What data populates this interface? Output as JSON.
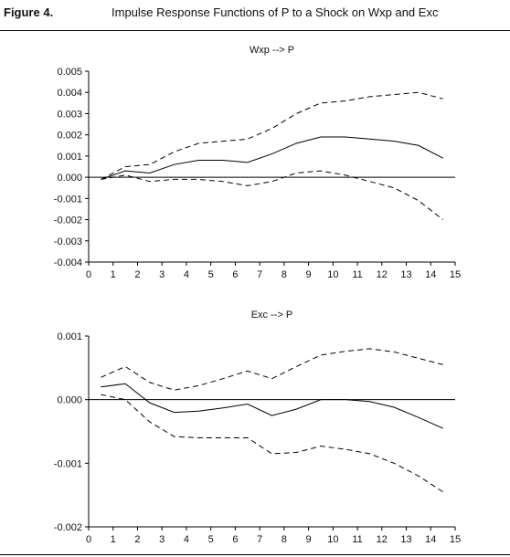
{
  "figure": {
    "label": "Figure 4.",
    "title": "Impulse Response Functions of P to a Shock on Wxp and Exc"
  },
  "chart_data": [
    {
      "type": "line",
      "title": "Wxp --> P",
      "xlabel": "",
      "ylabel": "",
      "xlim": [
        0,
        15
      ],
      "ylim": [
        -0.004,
        0.005
      ],
      "x_ticks": [
        0,
        1,
        2,
        3,
        4,
        5,
        6,
        7,
        8,
        9,
        10,
        11,
        12,
        13,
        14,
        15
      ],
      "y_ticks": [
        -0.004,
        -0.003,
        -0.002,
        -0.001,
        0.0,
        0.001,
        0.002,
        0.003,
        0.004,
        0.005
      ],
      "y_tick_labels": [
        "-0.004",
        "-0.003",
        "-0.002",
        "-0.001",
        "0.000",
        "0.001",
        "0.002",
        "0.003",
        "0.004",
        "0.005"
      ],
      "grid": false,
      "zero_line": true,
      "x": [
        0.5,
        1.5,
        2.5,
        3.5,
        4.5,
        5.5,
        6.5,
        7.5,
        8.5,
        9.5,
        10.5,
        11.5,
        12.5,
        13.5,
        14.5
      ],
      "series": [
        {
          "style": "solid",
          "values": [
            -0.0001,
            0.0003,
            0.0002,
            0.0006,
            0.0008,
            0.0008,
            0.0007,
            0.0011,
            0.0016,
            0.0019,
            0.0019,
            0.0018,
            0.0017,
            0.0015,
            0.0009
          ]
        },
        {
          "style": "dashed",
          "values": [
            -0.0001,
            0.0005,
            0.0006,
            0.0012,
            0.0016,
            0.0017,
            0.0018,
            0.0023,
            0.003,
            0.0035,
            0.0036,
            0.0038,
            0.0039,
            0.004,
            0.0037
          ]
        },
        {
          "style": "dashed",
          "values": [
            -0.0001,
            0.0001,
            -0.0002,
            -0.0001,
            -0.0001,
            -0.0002,
            -0.0004,
            -0.0002,
            0.0002,
            0.0003,
            0.0001,
            -0.0002,
            -0.0005,
            -0.0011,
            -0.002
          ]
        }
      ]
    },
    {
      "type": "line",
      "title": "Exc --> P",
      "xlabel": "",
      "ylabel": "",
      "xlim": [
        0,
        15
      ],
      "ylim": [
        -0.002,
        0.001
      ],
      "x_ticks": [
        0,
        1,
        2,
        3,
        4,
        5,
        6,
        7,
        8,
        9,
        10,
        11,
        12,
        13,
        14,
        15
      ],
      "y_ticks": [
        -0.002,
        -0.001,
        0.0,
        0.001
      ],
      "y_tick_labels": [
        "-0.002",
        "-0.001",
        "0.000",
        "0.001"
      ],
      "grid": false,
      "zero_line": true,
      "x": [
        0.5,
        1.5,
        2.5,
        3.5,
        4.5,
        5.5,
        6.5,
        7.5,
        8.5,
        9.5,
        10.5,
        11.5,
        12.5,
        13.5,
        14.5
      ],
      "series": [
        {
          "style": "solid",
          "values": [
            0.0002,
            0.00025,
            -5e-05,
            -0.0002,
            -0.00018,
            -0.00013,
            -7e-05,
            -0.00025,
            -0.00015,
            0.0,
            0.0,
            -3e-05,
            -0.00012,
            -0.00028,
            -0.00045
          ]
        },
        {
          "style": "dashed",
          "values": [
            0.00035,
            0.00052,
            0.00027,
            0.00015,
            0.00022,
            0.00033,
            0.00045,
            0.00033,
            0.00052,
            0.0007,
            0.00076,
            0.0008,
            0.00075,
            0.00065,
            0.00055
          ]
        },
        {
          "style": "dashed",
          "values": [
            8e-05,
            0.0,
            -0.00035,
            -0.00058,
            -0.0006,
            -0.0006,
            -0.0006,
            -0.00085,
            -0.00083,
            -0.00073,
            -0.00078,
            -0.00085,
            -0.001,
            -0.0012,
            -0.00145
          ]
        }
      ]
    }
  ]
}
